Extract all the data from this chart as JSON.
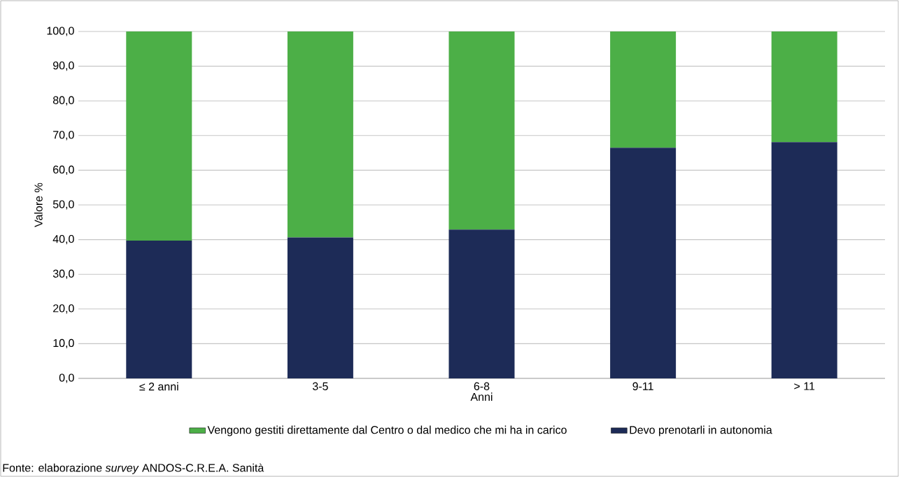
{
  "chart_data": {
    "type": "bar",
    "stacked": true,
    "xlabel": "Anni",
    "ylabel": "Valore %",
    "categories": [
      "≤ 2 anni",
      "3-5",
      "6-8",
      "9-11",
      "> 11"
    ],
    "series": [
      {
        "name": "Devo prenotarli in autonomia",
        "color": "#1d2b57",
        "values": [
          39.7,
          40.6,
          42.9,
          66.5,
          68.1
        ]
      },
      {
        "name": "Vengono gestiti direttamente dal Centro o dal medico che mi ha in carico",
        "color": "#4caf47",
        "values": [
          60.3,
          59.4,
          57.1,
          33.5,
          31.9
        ]
      }
    ],
    "ylim": [
      0,
      100
    ],
    "yticks": [
      {
        "value": 0,
        "label": "0,0"
      },
      {
        "value": 10,
        "label": "10,0"
      },
      {
        "value": 20,
        "label": "20,0"
      },
      {
        "value": 30,
        "label": "30,0"
      },
      {
        "value": 40,
        "label": "40,0"
      },
      {
        "value": 50,
        "label": "50,0"
      },
      {
        "value": 60,
        "label": "60,0"
      },
      {
        "value": 70,
        "label": "70,0"
      },
      {
        "value": 80,
        "label": "80,0"
      },
      {
        "value": 90,
        "label": "90,0"
      },
      {
        "value": 100,
        "label": "100,0"
      }
    ],
    "grid": "y",
    "legend": "bottom",
    "annotations": [
      "Fonte: elaborazione *survey* ANDOS-C.R.E.A. Sanità"
    ]
  }
}
